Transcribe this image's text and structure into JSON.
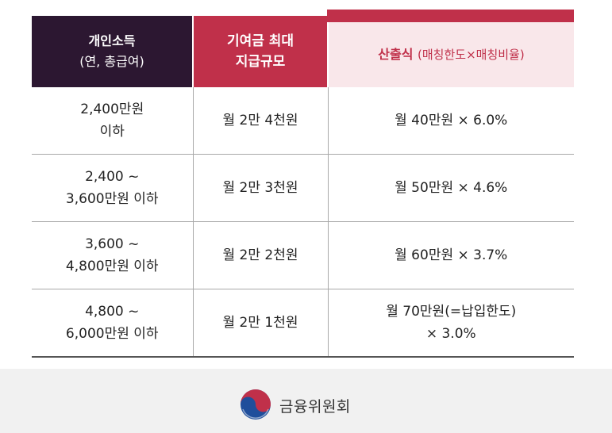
{
  "table": {
    "headers": {
      "income_title": "개인소득",
      "income_sub": "(연, 총급여)",
      "max_line1": "기여금 최대",
      "max_line2": "지급규모",
      "calc_main": "산출식",
      "calc_paren": "(매칭한도×매칭비율)"
    },
    "rows": [
      {
        "income_line1": "2,400만원",
        "income_line2": "이하",
        "max": "월 2만 4천원",
        "calc_line1": "월 40만원 × 6.0%",
        "calc_line2": ""
      },
      {
        "income_line1": "2,400 ~",
        "income_line2": "3,600만원 이하",
        "max": "월 2만 3천원",
        "calc_line1": "월 50만원 × 4.6%",
        "calc_line2": ""
      },
      {
        "income_line1": "3,600 ~",
        "income_line2": "4,800만원 이하",
        "max": "월 2만 2천원",
        "calc_line1": "월 60만원 × 3.7%",
        "calc_line2": ""
      },
      {
        "income_line1": "4,800 ~",
        "income_line2": "6,000만원 이하",
        "max": "월 2만 1천원",
        "calc_line1": "월 70만원(=납입한도)",
        "calc_line2": "× 3.0%"
      }
    ]
  },
  "footer": {
    "org_name": "금융위원회",
    "logo_icon": "taegeuk-logo-icon",
    "colors": {
      "red": "#c0304a",
      "blue": "#1f4e9b",
      "dark": "#2c1731"
    }
  }
}
